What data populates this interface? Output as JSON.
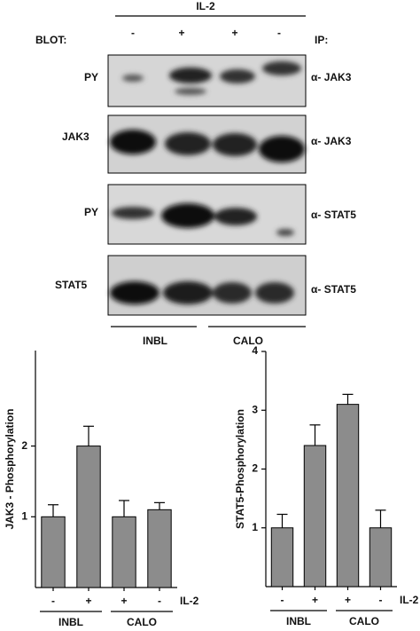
{
  "figure": {
    "il2_label": "IL-2",
    "treatment": [
      "-",
      "+",
      "+",
      "-"
    ],
    "blot_label": "BLOT:",
    "ip_label": "IP:",
    "blots": [
      {
        "blot": "PY",
        "ip": "α- JAK3"
      },
      {
        "blot": "JAK3",
        "ip": "α- JAK3"
      },
      {
        "blot": "PY",
        "ip": "α- STAT5"
      },
      {
        "blot": "STAT5",
        "ip": "α- STAT5"
      }
    ],
    "groups": [
      "INBL",
      "CALO"
    ]
  },
  "chart_data": [
    {
      "type": "bar",
      "ylabel": "JAK3 - Phosphorylation",
      "categories": [
        "-",
        "+",
        "+",
        "-"
      ],
      "treatment_label": "IL-2",
      "groups": [
        "INBL",
        "CALO"
      ],
      "values": [
        1,
        2,
        1,
        1.1
      ],
      "errors": [
        0.17,
        0.28,
        0.23,
        0.1
      ],
      "color": "#8c8c8c",
      "ylim": [
        0,
        3.35
      ],
      "yticks": [
        1,
        2
      ]
    },
    {
      "type": "bar",
      "ylabel": "STAT5-Phosphorylation",
      "categories": [
        "-",
        "+",
        "+",
        "-"
      ],
      "treatment_label": "IL-2",
      "groups": [
        "INBL",
        "CALO"
      ],
      "values": [
        1,
        2.4,
        3.1,
        1
      ],
      "errors": [
        0.23,
        0.35,
        0.17,
        0.3
      ],
      "color": "#8c8c8c",
      "ylim": [
        0,
        4
      ],
      "yticks": [
        1,
        2,
        3,
        4
      ]
    }
  ]
}
